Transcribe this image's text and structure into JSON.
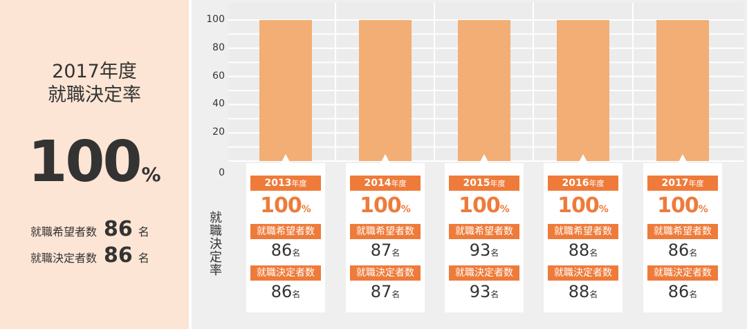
{
  "summary": {
    "year_label": "2017年度",
    "rate_title": "就職決定率",
    "rate_value": "100",
    "rate_unit": "%",
    "applicants_label": "就職希望者数",
    "applicants_value": "86",
    "hired_label": "就職決定者数",
    "hired_value": "86",
    "person_unit": "名"
  },
  "chart_data": {
    "type": "bar",
    "categories": [
      "2013年度",
      "2014年度",
      "2015年度",
      "2016年度",
      "2017年度"
    ],
    "values": [
      100,
      100,
      100,
      100,
      100
    ],
    "ylabel": "就職決定率",
    "ylim": [
      0,
      100
    ],
    "yticks": [
      0,
      20,
      40,
      60,
      80,
      100
    ],
    "bar_color": "#f2ae74",
    "grid": true
  },
  "cards": [
    {
      "year_num": "2013",
      "year_suffix": "年度",
      "rate": "100",
      "rate_unit": "%",
      "applicants_label": "就職希望者数",
      "applicants": "86",
      "hired_label": "就職決定者数",
      "hired": "86",
      "unit": "名"
    },
    {
      "year_num": "2014",
      "year_suffix": "年度",
      "rate": "100",
      "rate_unit": "%",
      "applicants_label": "就職希望者数",
      "applicants": "87",
      "hired_label": "就職決定者数",
      "hired": "87",
      "unit": "名"
    },
    {
      "year_num": "2015",
      "year_suffix": "年度",
      "rate": "100",
      "rate_unit": "%",
      "applicants_label": "就職希望者数",
      "applicants": "93",
      "hired_label": "就職決定者数",
      "hired": "93",
      "unit": "名"
    },
    {
      "year_num": "2016",
      "year_suffix": "年度",
      "rate": "100",
      "rate_unit": "%",
      "applicants_label": "就職希望者数",
      "applicants": "88",
      "hired_label": "就職決定者数",
      "hired": "88",
      "unit": "名"
    },
    {
      "year_num": "2017",
      "year_suffix": "年度",
      "rate": "100",
      "rate_unit": "%",
      "applicants_label": "就職希望者数",
      "applicants": "86",
      "hired_label": "就職決定者数",
      "hired": "86",
      "unit": "名"
    }
  ],
  "colors": {
    "accent": "#ee7b3a",
    "bar": "#f2ae74",
    "panel_bg": "#fce5d4",
    "chart_bg": "#efefef"
  }
}
